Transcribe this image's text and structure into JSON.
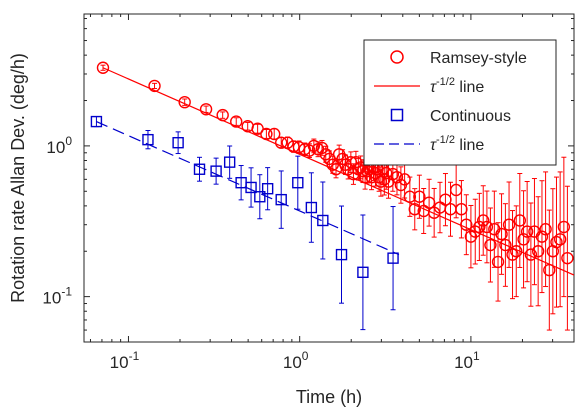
{
  "chart_data": {
    "type": "scatter",
    "xlabel": "Time (h)",
    "ylabel": "Rotation rate Allan Dev. (deg/h)",
    "x_scale": "log",
    "y_scale": "log",
    "xlim": [
      0.055,
      40
    ],
    "ylim": [
      0.05,
      7.5
    ],
    "x_ticks": [
      {
        "value": 0.1,
        "base": "10",
        "exp": "-1"
      },
      {
        "value": 1,
        "base": "10",
        "exp": "0"
      },
      {
        "value": 10,
        "base": "10",
        "exp": "1"
      }
    ],
    "y_ticks": [
      {
        "value": 0.1,
        "base": "10",
        "exp": "-1"
      },
      {
        "value": 1,
        "base": "10",
        "exp": "0"
      }
    ],
    "grid": false,
    "legend_position": "top-right",
    "legend": [
      {
        "label": "Ramsey-style",
        "kind": "marker-circle",
        "color": "#ff0000"
      },
      {
        "label": "τ-1/2 line",
        "base": "τ",
        "sup": "-1/2",
        "rest": " line",
        "kind": "solid-line",
        "color": "#ff0000"
      },
      {
        "label": "Continuous",
        "kind": "marker-square",
        "color": "#0000cc"
      },
      {
        "label": "τ-1/2 line",
        "base": "τ",
        "sup": "-1/2",
        "rest": " line",
        "kind": "dashed-line",
        "color": "#0000cc"
      }
    ],
    "series": [
      {
        "name": "Ramsey-style",
        "marker": "circle",
        "color": "#ff0000",
        "x": [
          0.071,
          0.142,
          0.213,
          0.284,
          0.355,
          0.426,
          0.497,
          0.568,
          0.639,
          0.71,
          0.78,
          0.85,
          0.92,
          0.99,
          1.07,
          1.14,
          1.21,
          1.28,
          1.35,
          1.42,
          1.49,
          1.56,
          1.63,
          1.7,
          1.78,
          1.85,
          1.92,
          1.99,
          2.06,
          2.13,
          2.2,
          2.27,
          2.34,
          2.41,
          2.48,
          2.56,
          2.63,
          2.7,
          2.77,
          2.84,
          2.91,
          2.98,
          3.05,
          3.12,
          3.2,
          3.3,
          3.5,
          3.7,
          3.9,
          4.1,
          4.4,
          4.7,
          5.0,
          5.3,
          5.7,
          6.1,
          6.6,
          7.1,
          7.6,
          8.2,
          8.8,
          9.4,
          10.0,
          10.6,
          11.2,
          11.8,
          12.4,
          13.0,
          13.7,
          14.4,
          15.1,
          15.9,
          16.7,
          17.5,
          18.4,
          19.3,
          20.3,
          21.3,
          22.4,
          23.5,
          24.7,
          26.0,
          27.3,
          28.7,
          30.1,
          31.6,
          33.2,
          34.9,
          36.6
        ],
        "y": [
          3.3,
          2.5,
          1.95,
          1.75,
          1.6,
          1.45,
          1.35,
          1.3,
          1.2,
          1.2,
          1.05,
          1.05,
          0.99,
          0.98,
          0.95,
          0.93,
          1.0,
          0.95,
          0.97,
          0.88,
          0.82,
          0.75,
          0.7,
          0.88,
          0.82,
          0.75,
          0.7,
          0.78,
          0.65,
          0.78,
          0.7,
          0.72,
          0.68,
          0.62,
          0.68,
          0.7,
          0.62,
          0.72,
          0.66,
          0.7,
          0.62,
          0.58,
          0.7,
          0.6,
          0.66,
          0.58,
          0.65,
          0.62,
          0.55,
          0.6,
          0.46,
          0.38,
          0.46,
          0.37,
          0.42,
          0.36,
          0.39,
          0.44,
          0.38,
          0.51,
          0.38,
          0.3,
          0.25,
          0.27,
          0.29,
          0.32,
          0.29,
          0.22,
          0.28,
          0.17,
          0.26,
          0.22,
          0.3,
          0.19,
          0.2,
          0.32,
          0.24,
          0.27,
          0.19,
          0.27,
          0.2,
          0.25,
          0.28,
          0.15,
          0.2,
          0.23,
          0.24,
          0.29,
          0.18
        ],
        "err_factor": [
          1.04,
          1.04,
          1.05,
          1.05,
          1.05,
          1.06,
          1.06,
          1.07,
          1.07,
          1.08,
          1.08,
          1.09,
          1.09,
          1.1,
          1.1,
          1.11,
          1.11,
          1.12,
          1.12,
          1.13,
          1.13,
          1.14,
          1.14,
          1.15,
          1.15,
          1.16,
          1.16,
          1.17,
          1.17,
          1.18,
          1.18,
          1.19,
          1.19,
          1.2,
          1.2,
          1.21,
          1.21,
          1.22,
          1.22,
          1.23,
          1.24,
          1.25,
          1.26,
          1.27,
          1.28,
          1.29,
          1.3,
          1.31,
          1.32,
          1.33,
          1.35,
          1.37,
          1.39,
          1.41,
          1.43,
          1.45,
          1.47,
          1.49,
          1.51,
          1.53,
          1.55,
          1.58,
          1.61,
          1.64,
          1.67,
          1.7,
          1.73,
          1.76,
          1.79,
          1.82,
          1.85,
          1.88,
          1.92,
          1.96,
          2.0,
          2.05,
          2.1,
          2.15,
          2.2,
          2.25,
          2.3,
          2.35,
          2.4,
          2.5,
          2.6,
          2.7,
          2.8,
          2.9,
          3.0
        ]
      },
      {
        "name": "τ-1/2 line",
        "line": "solid",
        "color": "#ff0000",
        "x": [
          0.071,
          40
        ],
        "y": [
          3.3,
          0.139
        ]
      },
      {
        "name": "Continuous",
        "marker": "square",
        "color": "#0000cc",
        "x": [
          0.065,
          0.13,
          0.195,
          0.26,
          0.325,
          0.39,
          0.455,
          0.52,
          0.585,
          0.65,
          0.78,
          0.975,
          1.17,
          1.365,
          1.755,
          2.34,
          3.51
        ],
        "y": [
          1.45,
          1.1,
          1.05,
          0.7,
          0.68,
          0.78,
          0.57,
          0.53,
          0.46,
          0.52,
          0.44,
          0.57,
          0.39,
          0.32,
          0.19,
          0.145,
          0.18
        ],
        "err_factor": [
          1.08,
          1.15,
          1.18,
          1.2,
          1.22,
          1.28,
          1.3,
          1.35,
          1.4,
          1.38,
          1.55,
          1.5,
          1.7,
          1.8,
          2.1,
          2.4,
          2.2
        ]
      },
      {
        "name": "τ-1/2 line",
        "line": "dashed",
        "color": "#0000cc",
        "x": [
          0.065,
          3.8
        ],
        "y": [
          1.45,
          0.19
        ]
      }
    ]
  }
}
